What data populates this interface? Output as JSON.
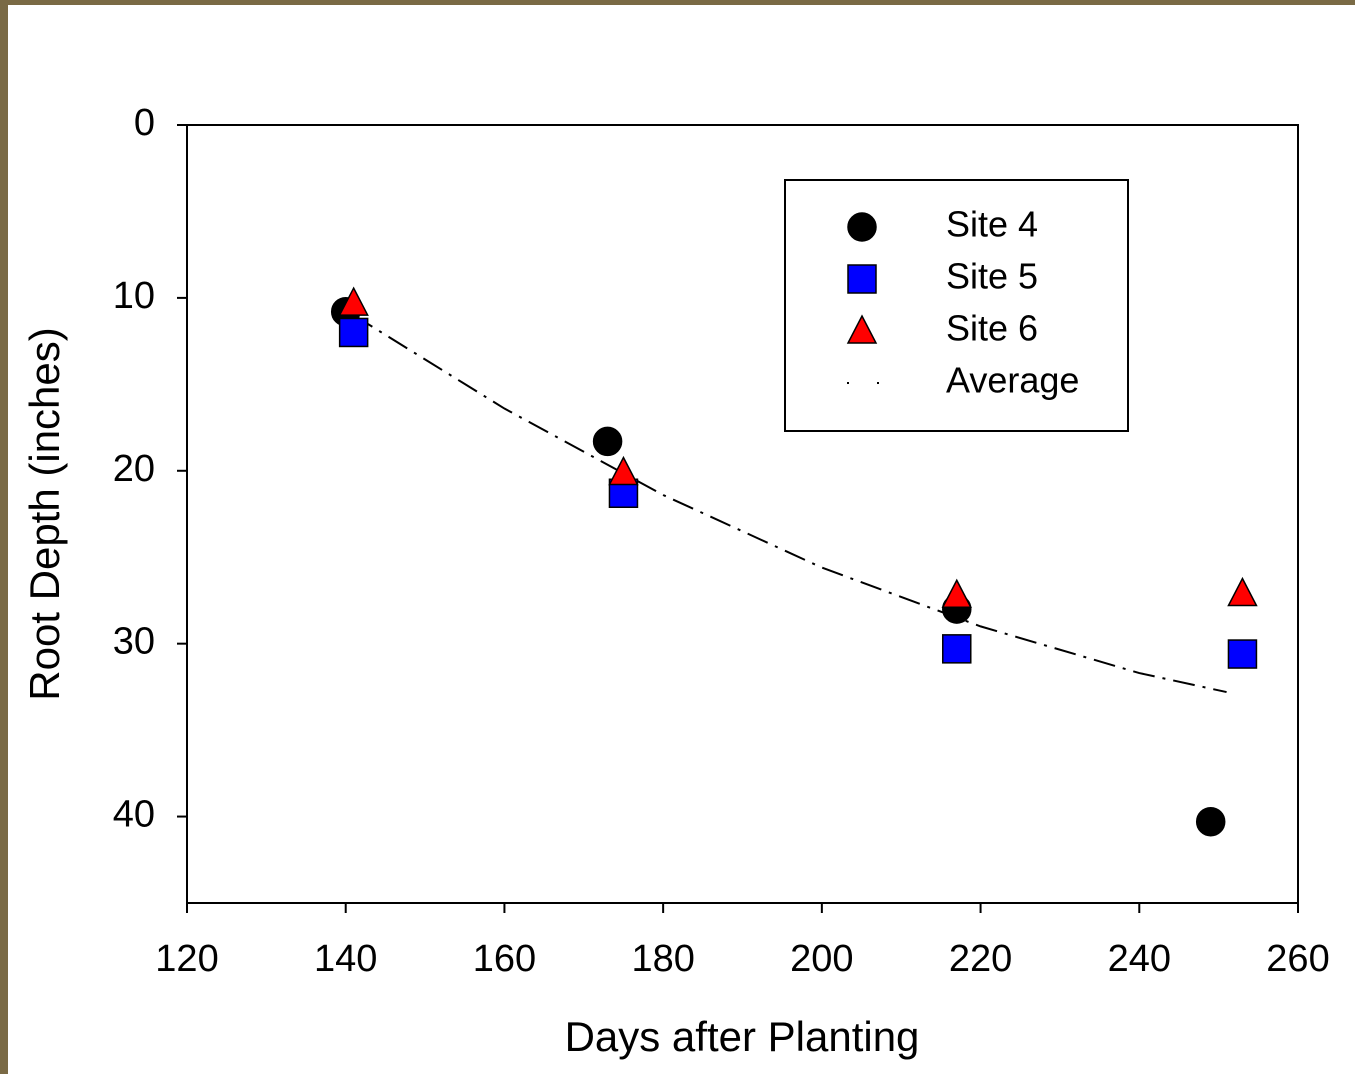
{
  "chart_data": {
    "type": "scatter",
    "xlabel": "Days after Planting",
    "ylabel": "Root Depth (inches)",
    "xlim": [
      120,
      260
    ],
    "xticks": [
      120,
      140,
      160,
      180,
      200,
      220,
      240,
      260
    ],
    "ylim": [
      0,
      45
    ],
    "yticks": [
      0,
      10,
      20,
      30,
      40
    ],
    "invert_y": true,
    "legend": "upper right",
    "series": [
      {
        "name": "Site 4",
        "color": "#000000",
        "marker": "circle",
        "x": [
          140,
          173,
          217,
          249
        ],
        "values": [
          10.8,
          18.3,
          28.0,
          40.3
        ]
      },
      {
        "name": "Site 5",
        "color": "#0000ff",
        "marker": "square",
        "x": [
          141,
          175,
          217,
          253
        ],
        "values": [
          12.0,
          21.3,
          30.3,
          30.6
        ]
      },
      {
        "name": "Site 6",
        "color": "#ff0000",
        "marker": "triangle",
        "x": [
          141,
          175,
          217,
          253
        ],
        "values": [
          10.3,
          20.1,
          27.2,
          27.1
        ]
      },
      {
        "name": "Average",
        "color": "#000000",
        "marker": "line",
        "x": [
          141,
          160,
          180,
          200,
          220,
          240,
          251
        ],
        "values": [
          11.0,
          16.4,
          21.4,
          25.6,
          29.0,
          31.7,
          32.8
        ]
      }
    ]
  }
}
